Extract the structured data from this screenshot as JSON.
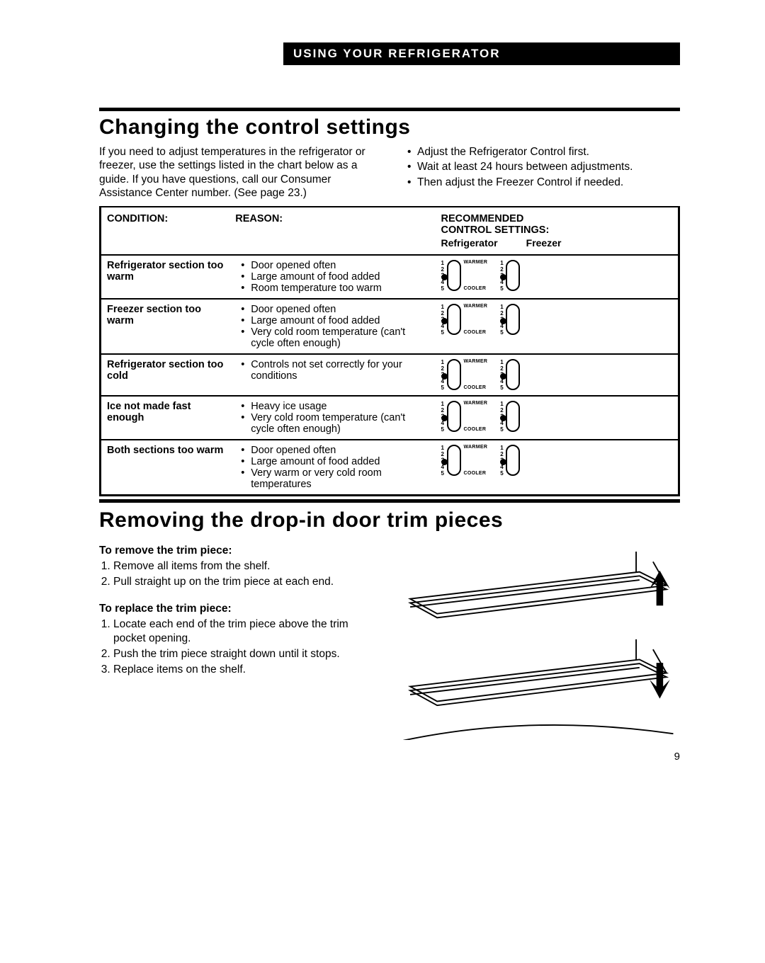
{
  "header_bar": "USING YOUR REFRIGERATOR",
  "section1": {
    "title": "Changing the control settings",
    "intro_left": "If you need to adjust temperatures in the refrigerator or freezer, use the settings listed in the chart below as a guide. If you have questions, call our Consumer Assistance Center number. (See page 23.)",
    "intro_bullets": [
      "Adjust the Refrigerator Control first.",
      "Wait at least 24 hours between adjustments.",
      "Then adjust the Freezer Control if needed."
    ]
  },
  "table": {
    "head_condition": "CONDITION:",
    "head_reason": "REASON:",
    "head_rec_line1": "RECOMMENDED",
    "head_rec_line2": "CONTROL SETTINGS:",
    "head_refrig": "Refrigerator",
    "head_freezer": "Freezer",
    "dial_numbers": [
      "1",
      "2",
      "3",
      "4",
      "5"
    ],
    "dial_warmer": "WARMER",
    "dial_cooler": "COOLER",
    "rows": [
      {
        "condition": "Refrigerator section too warm",
        "reasons": [
          "Door opened often",
          "Large amount of food added",
          "Room temperature too warm"
        ],
        "refrig_setting": 3,
        "freezer_setting": 3
      },
      {
        "condition": "Freezer section too warm",
        "reasons": [
          "Door opened often",
          "Large amount of food added",
          "Very cold room temperature (can't cycle often enough)"
        ],
        "refrig_setting": 3,
        "freezer_setting": 3
      },
      {
        "condition": "Refrigerator section too cold",
        "reasons": [
          "Controls not set correctly for your conditions"
        ],
        "refrig_setting": 3,
        "freezer_setting": 3
      },
      {
        "condition": "Ice not made fast enough",
        "reasons": [
          "Heavy ice usage",
          "Very cold room temperature (can't cycle often enough)"
        ],
        "refrig_setting": 3,
        "freezer_setting": 3
      },
      {
        "condition": "Both sections too warm",
        "reasons": [
          "Door opened often",
          "Large amount of food added",
          "Very warm or very cold room temperatures"
        ],
        "refrig_setting": 3,
        "freezer_setting": 3
      }
    ]
  },
  "section2": {
    "title": "Removing the drop-in door trim pieces",
    "remove_head": "To remove the trim piece:",
    "remove_steps": [
      "Remove all items from the shelf.",
      "Pull straight up on the trim piece at each end."
    ],
    "replace_head": "To replace the trim piece:",
    "replace_steps": [
      "Locate each end of the trim piece above the trim pocket opening.",
      "Push the trim piece straight down until it stops.",
      "Replace items on the shelf."
    ]
  },
  "page_number": "9",
  "colors": {
    "text": "#000000",
    "bg": "#ffffff"
  }
}
